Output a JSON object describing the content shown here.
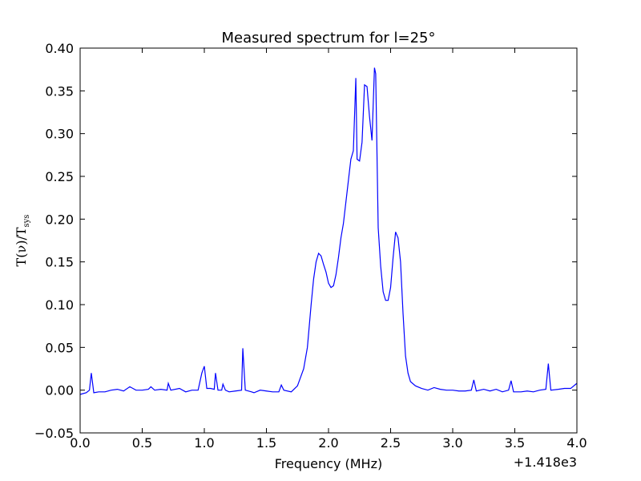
{
  "chart_data": {
    "type": "line",
    "title": "Measured spectrum for l=25°",
    "xlabel": "Frequency (MHz)",
    "ylabel": "T(ν)/T",
    "ylabel_sub": "sys",
    "x_offset": "+1.418e3",
    "xlim": [
      0,
      4
    ],
    "ylim": [
      -0.05,
      0.4
    ],
    "xticks": [
      {
        "value": 0,
        "label": "0.0"
      },
      {
        "value": 0.5,
        "label": "0.5"
      },
      {
        "value": 1,
        "label": "1.0"
      },
      {
        "value": 1.5,
        "label": "1.5"
      },
      {
        "value": 2,
        "label": "2.0"
      },
      {
        "value": 2.5,
        "label": "2.5"
      },
      {
        "value": 3,
        "label": "3.0"
      },
      {
        "value": 3.5,
        "label": "3.5"
      },
      {
        "value": 4,
        "label": "4.0"
      }
    ],
    "yticks": [
      {
        "value": -0.05,
        "label": "−0.05"
      },
      {
        "value": 0,
        "label": "0.00"
      },
      {
        "value": 0.05,
        "label": "0.05"
      },
      {
        "value": 0.1,
        "label": "0.10"
      },
      {
        "value": 0.15,
        "label": "0.15"
      },
      {
        "value": 0.2,
        "label": "0.20"
      },
      {
        "value": 0.25,
        "label": "0.25"
      },
      {
        "value": 0.3,
        "label": "0.30"
      },
      {
        "value": 0.35,
        "label": "0.35"
      },
      {
        "value": 0.4,
        "label": "0.40"
      }
    ],
    "x": [
      0,
      0.05,
      0.075,
      0.09,
      0.11,
      0.15,
      0.2,
      0.25,
      0.3,
      0.35,
      0.4,
      0.45,
      0.5,
      0.55,
      0.57,
      0.6,
      0.65,
      0.7,
      0.71,
      0.73,
      0.8,
      0.85,
      0.9,
      0.95,
      0.98,
      1.0,
      1.02,
      1.05,
      1.08,
      1.09,
      1.11,
      1.14,
      1.15,
      1.17,
      1.2,
      1.25,
      1.3,
      1.31,
      1.33,
      1.38,
      1.4,
      1.45,
      1.5,
      1.55,
      1.6,
      1.62,
      1.64,
      1.7,
      1.75,
      1.8,
      1.83,
      1.86,
      1.88,
      1.9,
      1.92,
      1.94,
      1.96,
      1.98,
      2.0,
      2.02,
      2.04,
      2.06,
      2.08,
      2.1,
      2.12,
      2.14,
      2.16,
      2.18,
      2.2,
      2.22,
      2.23,
      2.25,
      2.27,
      2.29,
      2.31,
      2.33,
      2.35,
      2.37,
      2.38,
      2.4,
      2.42,
      2.44,
      2.46,
      2.48,
      2.5,
      2.52,
      2.54,
      2.56,
      2.58,
      2.6,
      2.62,
      2.64,
      2.66,
      2.7,
      2.75,
      2.8,
      2.85,
      2.9,
      2.95,
      3.0,
      3.05,
      3.1,
      3.15,
      3.17,
      3.19,
      3.25,
      3.3,
      3.35,
      3.4,
      3.45,
      3.47,
      3.49,
      3.55,
      3.6,
      3.65,
      3.7,
      3.75,
      3.77,
      3.79,
      3.85,
      3.9,
      3.95,
      4.0
    ],
    "series": [
      {
        "color": "#0000ff",
        "values": [
          -0.005,
          -0.003,
          0.0,
          0.02,
          -0.003,
          -0.002,
          -0.002,
          0.0,
          0.001,
          -0.001,
          0.004,
          0.0,
          0.0,
          0.001,
          0.004,
          0.0,
          0.001,
          0.0,
          0.008,
          0.0,
          0.002,
          -0.002,
          0.0,
          0.0,
          0.02,
          0.028,
          0.002,
          0.002,
          0.001,
          0.02,
          0.0,
          0.0,
          0.007,
          0.0,
          -0.002,
          -0.001,
          0.0,
          0.049,
          0.0,
          -0.002,
          -0.003,
          0.0,
          -0.001,
          -0.002,
          -0.002,
          0.006,
          0.0,
          -0.002,
          0.005,
          0.025,
          0.05,
          0.1,
          0.13,
          0.15,
          0.16,
          0.157,
          0.147,
          0.138,
          0.125,
          0.12,
          0.122,
          0.135,
          0.155,
          0.178,
          0.195,
          0.22,
          0.245,
          0.27,
          0.28,
          0.365,
          0.27,
          0.268,
          0.29,
          0.357,
          0.355,
          0.32,
          0.292,
          0.377,
          0.37,
          0.19,
          0.145,
          0.115,
          0.105,
          0.105,
          0.12,
          0.155,
          0.185,
          0.178,
          0.15,
          0.09,
          0.04,
          0.02,
          0.01,
          0.005,
          0.002,
          0.0,
          0.003,
          0.001,
          0.0,
          0.0,
          -0.001,
          -0.001,
          0.0,
          0.012,
          -0.001,
          0.001,
          -0.001,
          0.001,
          -0.002,
          0.0,
          0.011,
          -0.002,
          -0.002,
          -0.001,
          -0.002,
          0.0,
          0.001,
          0.031,
          0.0,
          0.001,
          0.002,
          0.002,
          0.008
        ]
      }
    ]
  }
}
